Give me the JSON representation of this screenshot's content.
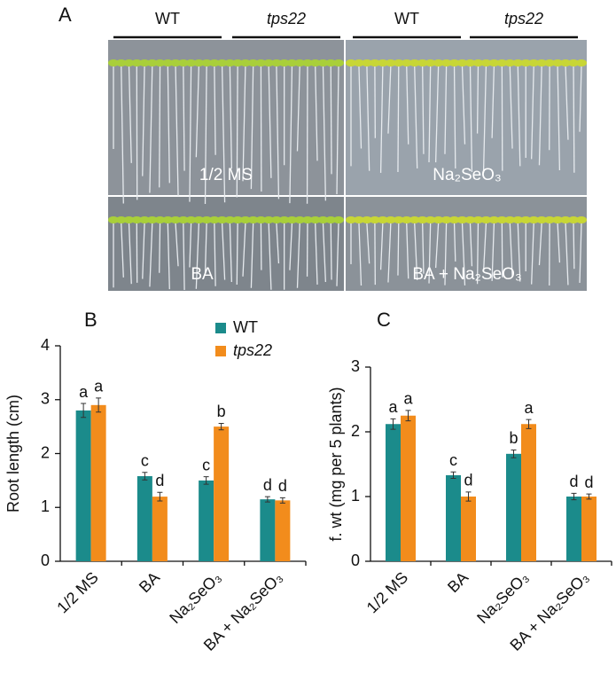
{
  "panel_a": {
    "panel": "A",
    "top_labels": [
      "WT",
      "tps22",
      "WT",
      "tps22"
    ],
    "plate_labels": [
      "1/2 MS",
      "Na₂SeO₃",
      "BA",
      "BA + Na₂SeO₃"
    ]
  },
  "chart_data": [
    {
      "type": "bar",
      "panel": "B",
      "y_label": "Root length (cm)",
      "categories": [
        "1/2 MS",
        "BA",
        "Na₂SeO₃",
        "BA + Na₂SeO₃"
      ],
      "series": [
        {
          "name": "WT",
          "color": "#1b8b8b",
          "values": [
            2.8,
            1.58,
            1.5,
            1.15
          ],
          "errors": [
            0.13,
            0.07,
            0.07,
            0.05
          ],
          "significance": [
            "a",
            "c",
            "c",
            "d"
          ]
        },
        {
          "name": "tps22",
          "color": "#f28c1c",
          "values": [
            2.9,
            1.2,
            2.5,
            1.13
          ],
          "errors": [
            0.13,
            0.08,
            0.06,
            0.05
          ],
          "significance": [
            "a",
            "d",
            "b",
            "d"
          ]
        }
      ],
      "ylim": [
        0,
        4
      ],
      "yticks": [
        0,
        1,
        2,
        3,
        4
      ],
      "legend": "top-right"
    },
    {
      "type": "bar",
      "panel": "C",
      "y_label": "f. wt (mg per 5 plants)",
      "categories": [
        "1/2 MS",
        "BA",
        "Na₂SeO₃",
        "BA + Na₂SeO₃"
      ],
      "series": [
        {
          "name": "WT",
          "color": "#1b8b8b",
          "values": [
            2.12,
            1.33,
            1.66,
            1.0
          ],
          "errors": [
            0.08,
            0.05,
            0.06,
            0.05
          ],
          "significance": [
            "a",
            "c",
            "b",
            "d"
          ]
        },
        {
          "name": "tps22",
          "color": "#f28c1c",
          "values": [
            2.25,
            1.0,
            2.12,
            1.0
          ],
          "errors": [
            0.08,
            0.07,
            0.07,
            0.04
          ],
          "significance": [
            "a",
            "d",
            "a",
            "d"
          ]
        }
      ],
      "ylim": [
        0,
        3
      ],
      "yticks": [
        0,
        1,
        2,
        3
      ]
    }
  ]
}
